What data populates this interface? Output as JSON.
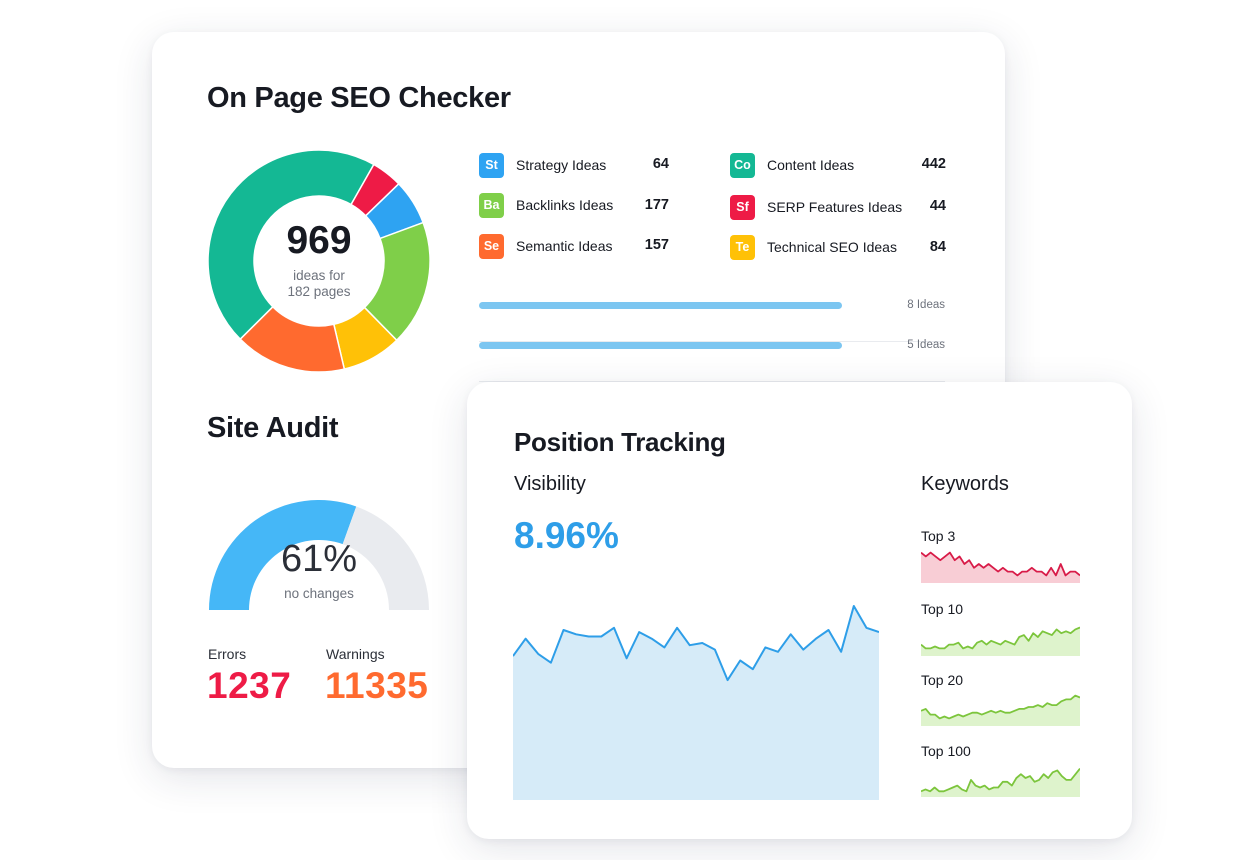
{
  "seo": {
    "title": "On Page SEO Checker",
    "total": "969",
    "total_sub_line1": "ideas for",
    "total_sub_line2": "182 pages",
    "legend": [
      {
        "abbr": "St",
        "label": "Strategy Ideas",
        "value": "64",
        "color": "#2ea3f2"
      },
      {
        "abbr": "Ba",
        "label": "Backlinks Ideas",
        "value": "177",
        "color": "#7fcf49"
      },
      {
        "abbr": "Se",
        "label": "Semantic Ideas",
        "value": "157",
        "color": "#ff6a2f"
      },
      {
        "abbr": "Co",
        "label": "Content Ideas",
        "value": "442",
        "color": "#14b894"
      },
      {
        "abbr": "Sf",
        "label": "SERP Features Ideas",
        "value": "44",
        "color": "#ee1b46"
      },
      {
        "abbr": "Te",
        "label": "Technical SEO Ideas",
        "value": "84",
        "color": "#ffc107"
      }
    ],
    "idea_rows": [
      {
        "text": "8 Ideas",
        "fill": 0.78
      },
      {
        "text": "5 Ideas",
        "fill": 0.78
      }
    ]
  },
  "audit": {
    "title": "Site Audit",
    "percent": "61%",
    "percent_value": 61,
    "status": "no changes",
    "errors_label": "Errors",
    "errors_value": "1237",
    "warnings_label": "Warnings",
    "warnings_value": "11335",
    "colors": {
      "gauge": "#45b7f7",
      "track": "#e9ebef",
      "errors": "#ee1b46",
      "warnings": "#ff6a2f"
    }
  },
  "tracking": {
    "title": "Position Tracking",
    "visibility_label": "Visibility",
    "visibility_value": "8.96%",
    "keywords_label": "Keywords",
    "keyword_groups": [
      {
        "label": "Top 3",
        "color": "#d81b48",
        "fill": "#f8cdd5"
      },
      {
        "label": "Top 10",
        "color": "#7cc53c",
        "fill": "#def3cc"
      },
      {
        "label": "Top 20",
        "color": "#7cc53c",
        "fill": "#def3cc"
      },
      {
        "label": "Top 100",
        "color": "#7cc53c",
        "fill": "#def3cc"
      }
    ]
  },
  "chart_data": [
    {
      "type": "pie",
      "categories": [
        "Content Ideas",
        "SERP Features Ideas",
        "Strategy Ideas",
        "Backlinks Ideas",
        "Technical SEO Ideas",
        "Semantic Ideas"
      ],
      "values": [
        442,
        44,
        64,
        177,
        84,
        157
      ],
      "colors": [
        "#14b894",
        "#ee1b46",
        "#2ea3f2",
        "#7fcf49",
        "#ffc107",
        "#ff6a2f"
      ]
    },
    {
      "type": "area",
      "values": [
        6.6,
        7.4,
        6.7,
        6.3,
        7.8,
        7.6,
        7.5,
        7.5,
        7.9,
        6.5,
        7.7,
        7.4,
        7.0,
        7.9,
        7.1,
        7.2,
        6.9,
        5.5,
        6.4,
        6.0,
        7.0,
        6.8,
        7.6,
        6.9,
        7.4,
        7.8,
        6.8,
        8.9,
        7.9,
        7.7
      ],
      "ylim": [
        0,
        10
      ],
      "color": "#2e9ee8",
      "fill": "#d6ebf8"
    },
    {
      "type": "area",
      "name": "Top 3",
      "values": [
        8,
        7,
        8,
        7,
        6,
        7,
        8,
        6,
        7,
        5,
        6,
        4,
        5,
        4,
        5,
        4,
        3,
        4,
        3,
        3,
        2,
        3,
        3,
        4,
        3,
        3,
        2,
        4,
        2,
        5,
        2,
        3,
        3,
        2
      ],
      "ylim": [
        0,
        10
      ]
    },
    {
      "type": "area",
      "name": "Top 10",
      "values": [
        3,
        2,
        2,
        2.5,
        2,
        2,
        3,
        3,
        3.5,
        2,
        2.5,
        2,
        3.5,
        4,
        3,
        4,
        3.5,
        3,
        4,
        3.5,
        3,
        5,
        5.5,
        4,
        6,
        5,
        6.5,
        6,
        5.5,
        7,
        6,
        6.5,
        6,
        7,
        7.5
      ],
      "ylim": [
        0,
        10
      ]
    },
    {
      "type": "area",
      "name": "Top 20",
      "values": [
        4,
        4.5,
        3,
        3,
        2,
        2.5,
        2,
        2.5,
        3,
        2.5,
        3,
        3.5,
        3.5,
        3,
        3.5,
        4,
        3.5,
        4,
        3.5,
        3.5,
        4,
        4.5,
        4.5,
        5,
        5,
        5.5,
        5,
        6,
        5.5,
        5.5,
        6.5,
        7,
        7,
        8,
        7.5
      ],
      "ylim": [
        0,
        10
      ]
    },
    {
      "type": "area",
      "name": "Top 100",
      "values": [
        1.5,
        2,
        1.5,
        2.5,
        1.5,
        1.5,
        2,
        2.5,
        3,
        2,
        1.5,
        4.5,
        3,
        2.5,
        3,
        2,
        2.5,
        2.5,
        4,
        4,
        3,
        5,
        6,
        5,
        5.5,
        4,
        4.5,
        6,
        5,
        6.5,
        7,
        5.5,
        4.5,
        4.5,
        6,
        7.5
      ],
      "ylim": [
        0,
        10
      ]
    }
  ]
}
